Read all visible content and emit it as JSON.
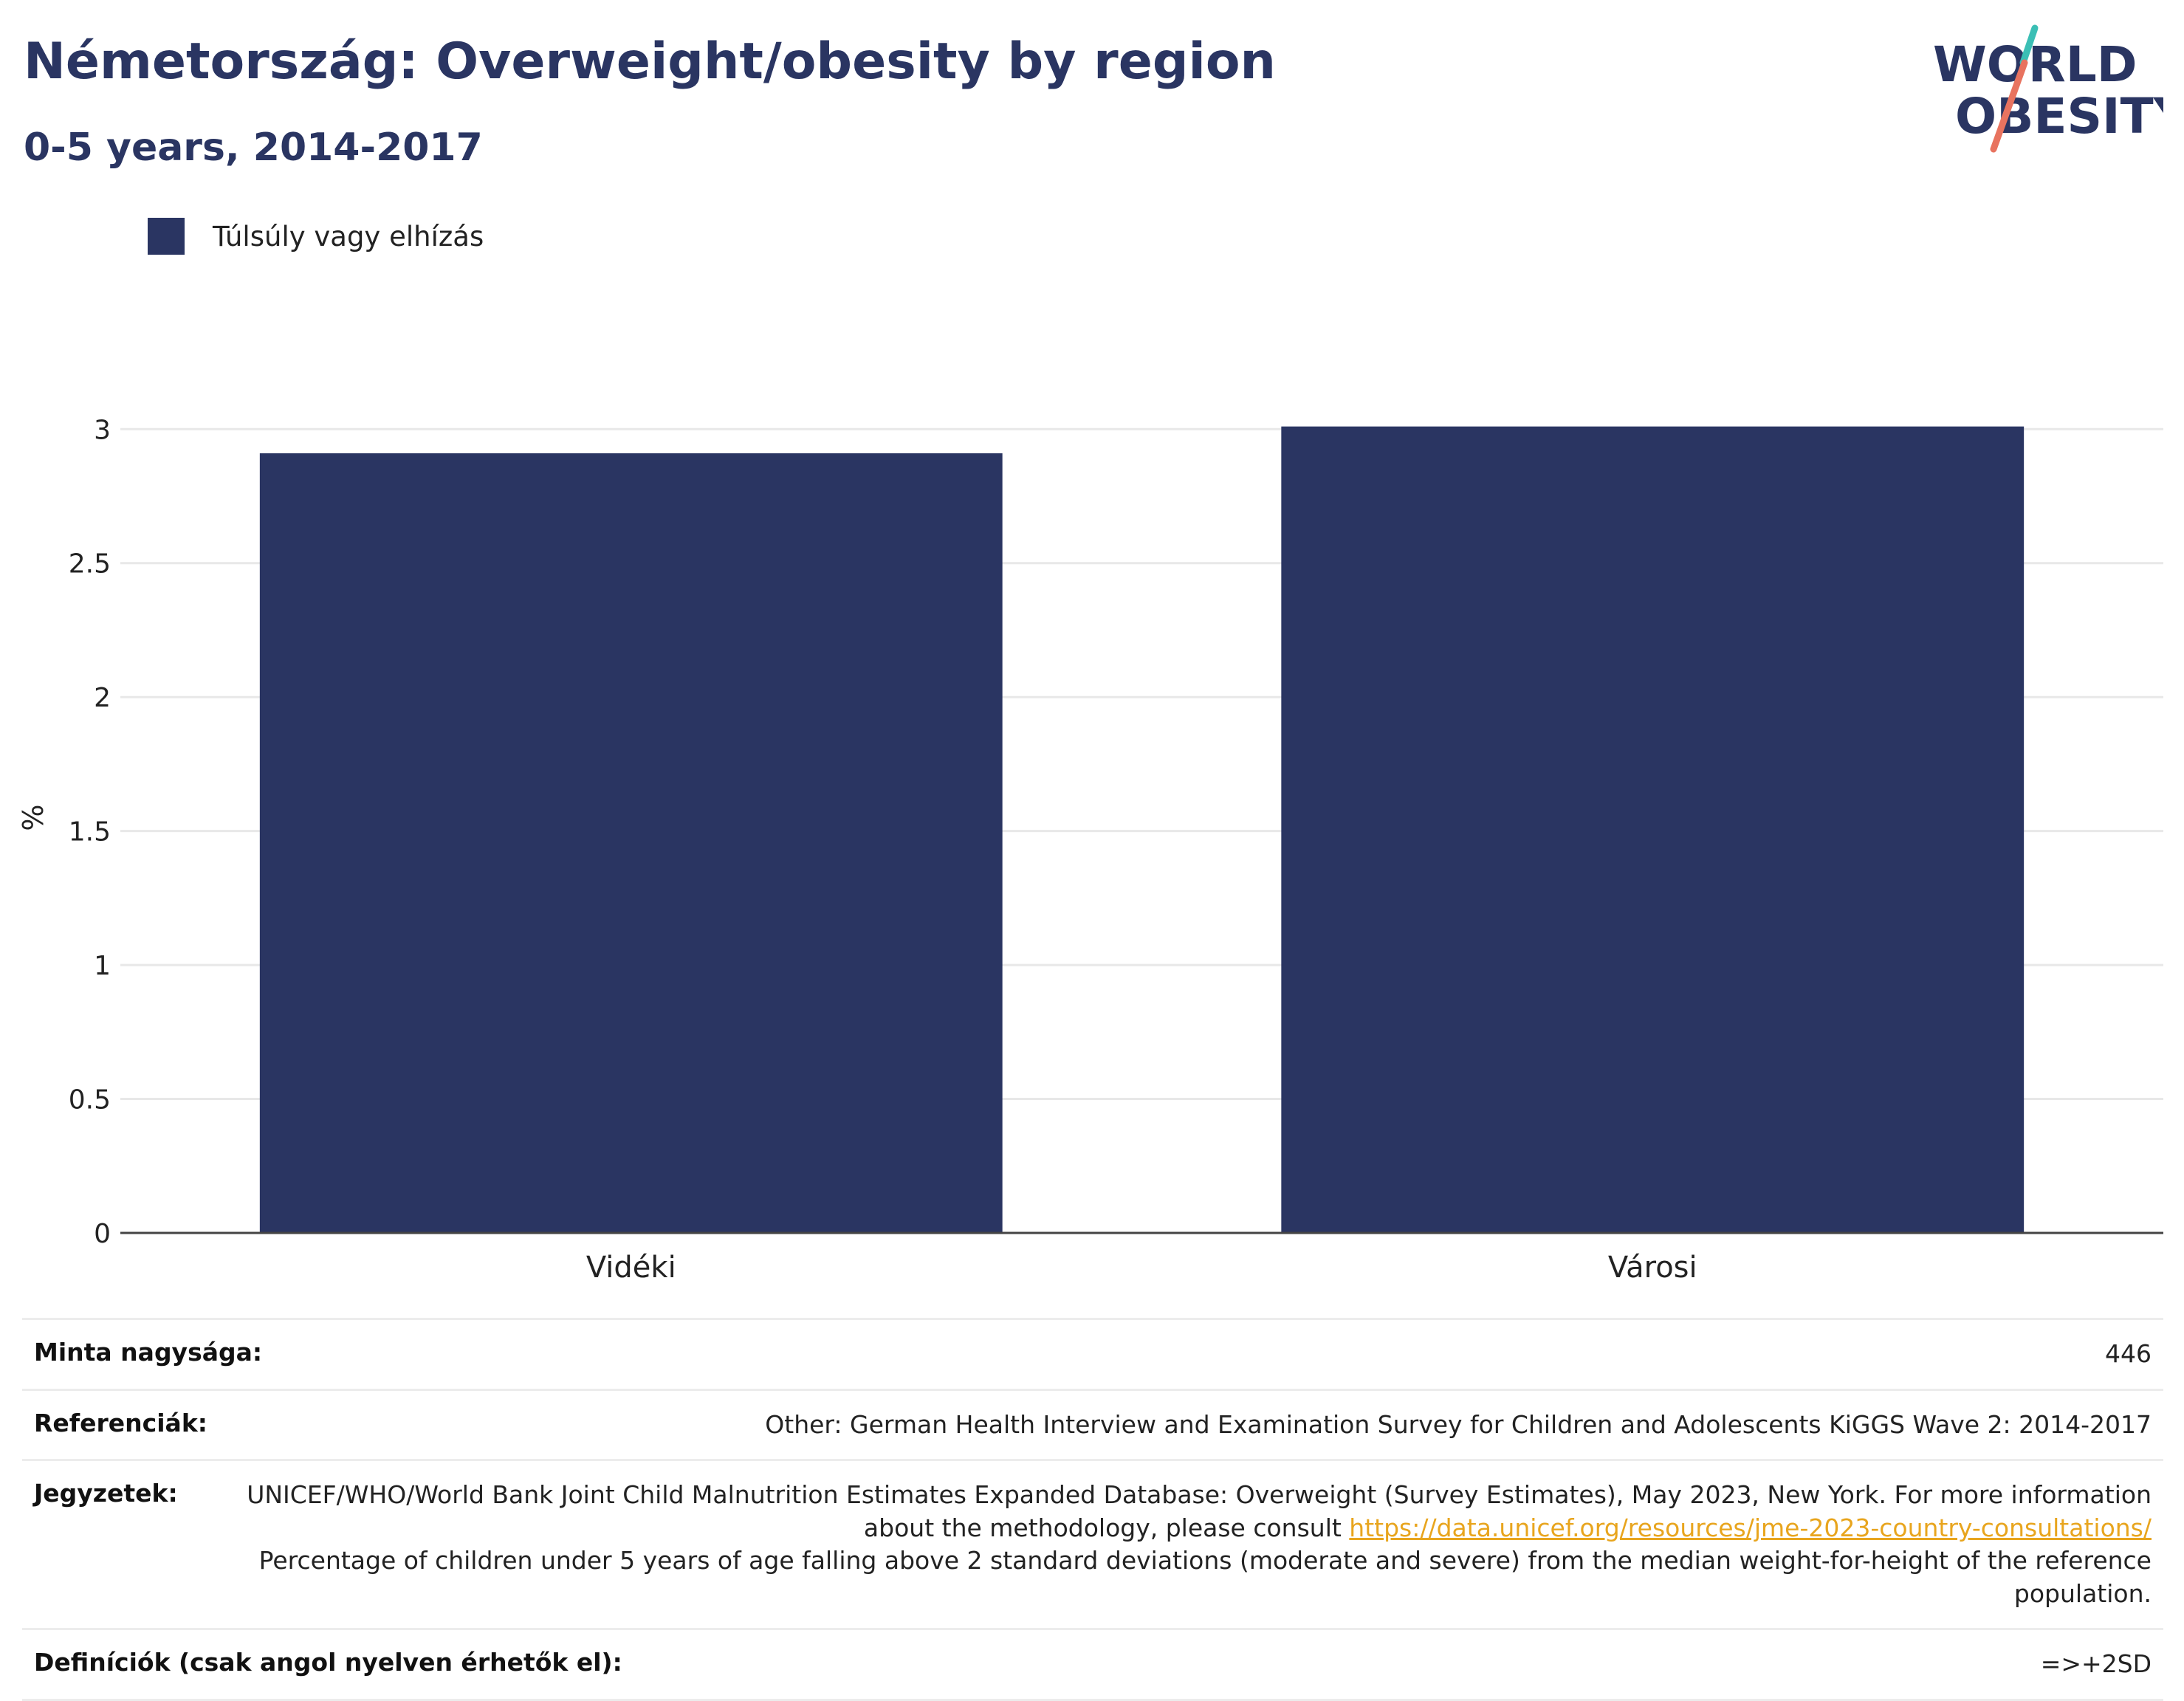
{
  "title": "Németország: Overweight/obesity by region",
  "subtitle": "0-5 years, 2014-2017",
  "logo": {
    "line1": "WORLD",
    "line2": "OBESITY",
    "icon": "world-obesity-logo"
  },
  "colors": {
    "bar": "#2a3562",
    "title": "#2a3562",
    "link": "#e8a51e",
    "logo_teal": "#3bbfb5",
    "logo_coral": "#e8735f"
  },
  "chart_data": {
    "type": "bar",
    "categories": [
      "Vidéki",
      "Városi"
    ],
    "series": [
      {
        "name": "Túlsúly vagy elhízás",
        "values": [
          2.91,
          3.01
        ]
      }
    ],
    "ylabel": "%",
    "ylim": [
      0,
      3.1
    ],
    "yticks": [
      "0",
      "0.5",
      "1",
      "1.5",
      "2",
      "2.5",
      "3"
    ],
    "grid": true,
    "legend": "top-left"
  },
  "footer": {
    "sample_label": "Minta nagysága:",
    "sample_value": "446",
    "refs_label": "Referenciák:",
    "refs_value": "Other: German Health Interview and Examination Survey for Children and Adolescents KiGGS Wave 2: 2014-2017",
    "notes_label": "Jegyzetek:",
    "notes_text1": "UNICEF/WHO/World Bank Joint Child Malnutrition Estimates Expanded Database: Overweight (Survey Estimates), May 2023, New York. For more information about the methodology, please consult ",
    "notes_link": "https://data.unicef.org/resources/jme-2023-country-consultations/",
    "notes_text2": "Percentage of children under 5 years of age falling above 2 standard deviations (moderate and severe) from the median weight-for-height of the reference population.",
    "defs_label": "Definíciók (csak angol nyelven érhetők el):",
    "defs_value": "=>+2SD"
  }
}
